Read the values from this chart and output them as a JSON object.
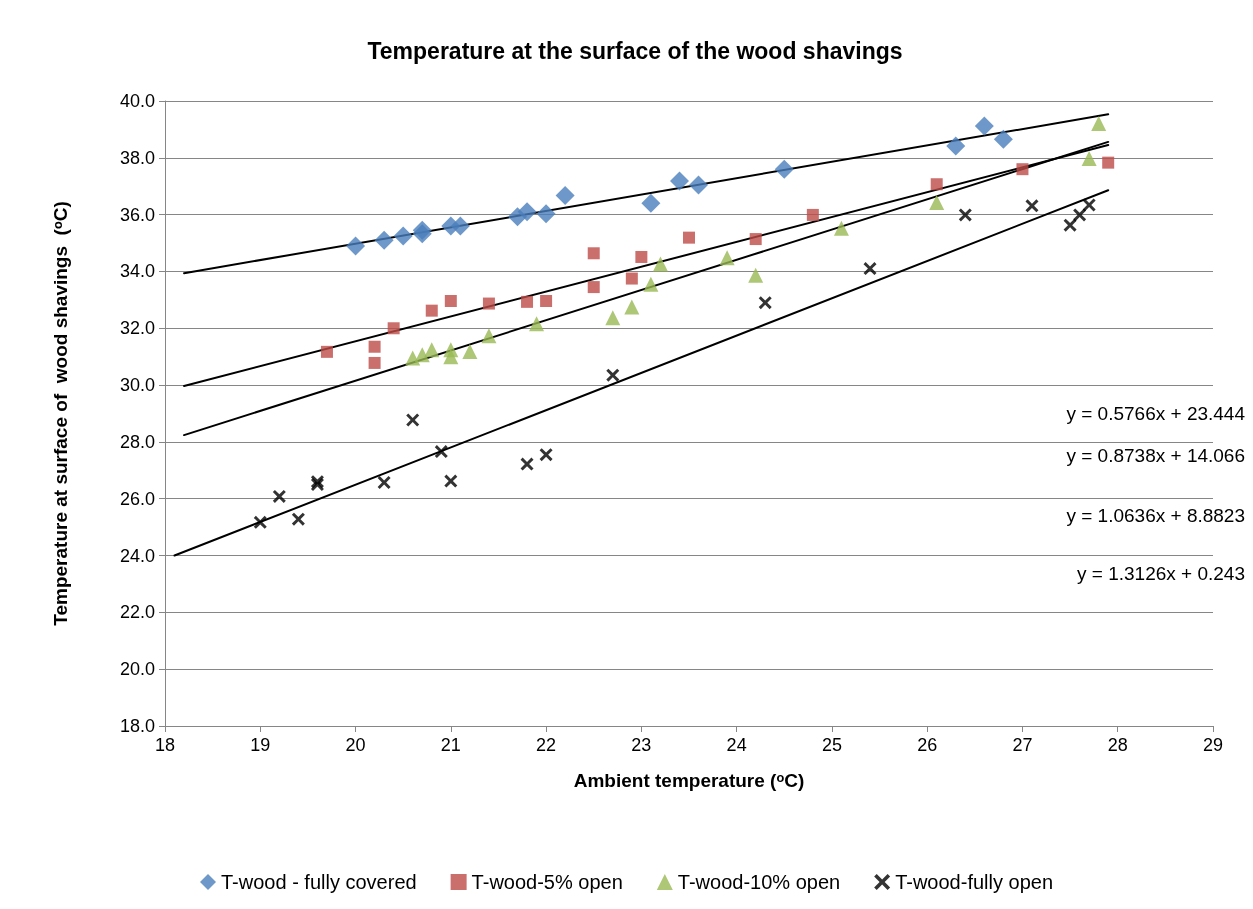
{
  "chart_data": {
    "type": "scatter",
    "title": "Temperature at the surface of the wood shavings",
    "xlabel": "Ambient temperature (ᵒC)",
    "ylabel": "Temperature at surface of  wood shavings  (ᵒC)",
    "xlim": [
      18,
      29
    ],
    "xticks": [
      18,
      19,
      20,
      21,
      22,
      23,
      24,
      25,
      26,
      27,
      28,
      29
    ],
    "ylim": [
      18,
      40
    ],
    "yticks": [
      {
        "value": 18,
        "label": "18.0"
      },
      {
        "value": 20,
        "label": "20.0"
      },
      {
        "value": 22,
        "label": "22.0"
      },
      {
        "value": 24,
        "label": "24.0"
      },
      {
        "value": 26,
        "label": "26.0"
      },
      {
        "value": 28,
        "label": "28.0"
      },
      {
        "value": 30,
        "label": "30.0"
      },
      {
        "value": 32,
        "label": "32.0"
      },
      {
        "value": 34,
        "label": "34.0"
      },
      {
        "value": 36,
        "label": "36.0"
      },
      {
        "value": 38,
        "label": "38.0"
      },
      {
        "value": 40,
        "label": "40.0"
      }
    ],
    "grid": "y",
    "legend": "bottom",
    "annotations": [
      "y = 0.5766x + 23.444",
      "y = 0.8738x + 14.066",
      "y = 1.0636x + 8.8823",
      "y = 1.3126x + 0.243"
    ],
    "series": [
      {
        "name": "T-wood - fully covered",
        "color": "#4a7ebb",
        "marker": "diamond",
        "x": [
          20.0,
          20.3,
          20.5,
          20.7,
          20.7,
          21.0,
          21.1,
          21.7,
          21.8,
          22.0,
          22.2,
          23.1,
          23.4,
          23.6,
          24.5,
          26.3,
          26.6,
          26.8
        ],
        "values": [
          34.9,
          35.1,
          35.25,
          35.33,
          35.45,
          35.6,
          35.6,
          35.93,
          36.1,
          36.03,
          36.67,
          36.4,
          37.18,
          37.04,
          37.6,
          38.42,
          39.12,
          38.65
        ]
      },
      {
        "name": "T-wood-5% open",
        "color": "#be4b48",
        "marker": "square",
        "x": [
          19.7,
          20.2,
          20.2,
          20.4,
          20.8,
          21.0,
          21.4,
          21.8,
          22.0,
          22.5,
          22.5,
          22.9,
          23.0,
          23.5,
          24.2,
          24.8,
          26.1,
          27.0,
          27.9
        ],
        "values": [
          31.17,
          31.35,
          30.78,
          32.0,
          32.62,
          32.96,
          32.87,
          32.93,
          32.96,
          34.64,
          33.45,
          33.75,
          34.51,
          35.19,
          35.14,
          35.99,
          37.07,
          37.6,
          37.83
        ]
      },
      {
        "name": "T-wood-10% open",
        "color": "#98b954",
        "marker": "triangle",
        "x": [
          20.6,
          20.7,
          20.8,
          21.0,
          21.0,
          21.2,
          21.4,
          21.9,
          22.7,
          22.9,
          23.1,
          23.2,
          23.9,
          24.2,
          25.1,
          26.1,
          27.7,
          27.8
        ],
        "values": [
          30.95,
          31.07,
          31.24,
          31.24,
          31.0,
          31.18,
          31.74,
          32.16,
          32.37,
          32.75,
          33.55,
          34.26,
          34.48,
          33.87,
          35.52,
          36.43,
          37.98,
          39.21
        ]
      },
      {
        "name": "T-wood-fully open",
        "color": "#000000",
        "marker": "cross",
        "x": [
          19.0,
          19.2,
          19.4,
          19.6,
          19.6,
          20.3,
          20.6,
          20.9,
          21.0,
          21.8,
          22.0,
          22.7,
          24.3,
          25.4,
          26.4,
          27.1,
          27.5,
          27.6,
          27.7
        ],
        "values": [
          25.17,
          26.08,
          25.28,
          26.6,
          26.5,
          26.57,
          28.77,
          27.66,
          26.62,
          27.22,
          27.55,
          30.35,
          32.9,
          34.1,
          35.99,
          36.31,
          35.63,
          35.99,
          36.34
        ]
      },
      {
        "type": "line",
        "color": "#000000",
        "marker": "none",
        "line_style": "solid",
        "x": [
          18.2,
          27.9
        ],
        "values": [
          33.94,
          39.53
        ]
      },
      {
        "type": "line",
        "color": "#000000",
        "marker": "none",
        "line_style": "solid",
        "x": [
          18.2,
          27.9
        ],
        "values": [
          29.97,
          38.45
        ]
      },
      {
        "type": "line",
        "color": "#000000",
        "marker": "none",
        "line_style": "solid",
        "x": [
          18.2,
          27.9
        ],
        "values": [
          28.24,
          38.56
        ]
      },
      {
        "type": "line",
        "color": "#000000",
        "marker": "none",
        "line_style": "solid",
        "x": [
          18.1,
          27.9
        ],
        "values": [
          24.0,
          36.86
        ]
      }
    ]
  }
}
